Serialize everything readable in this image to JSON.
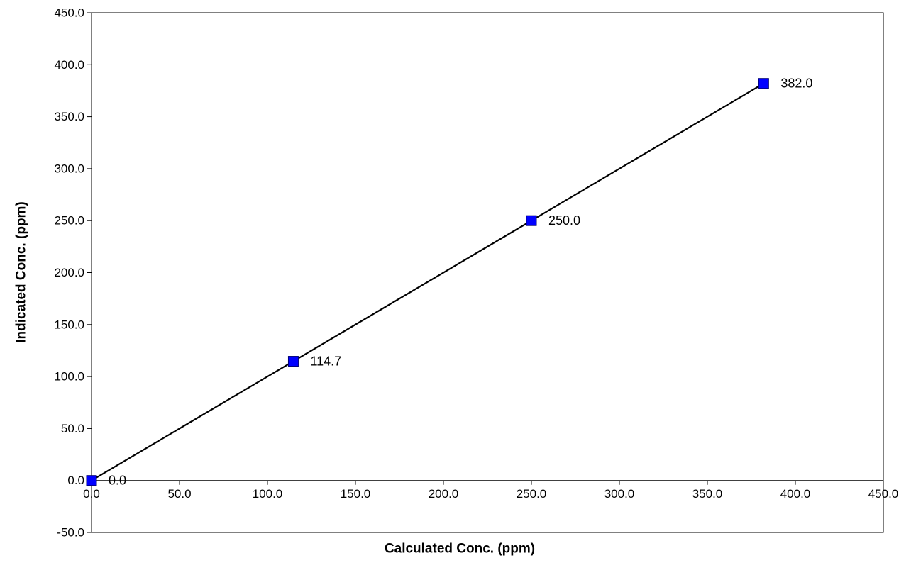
{
  "chart_data": {
    "type": "scatter",
    "xlabel": "Calculated Conc. (ppm)",
    "ylabel": "Indicated Conc. (ppm)",
    "xlim": [
      0,
      450
    ],
    "ylim": [
      -50,
      450
    ],
    "x_ticks": [
      "0.0",
      "50.0",
      "100.0",
      "150.0",
      "200.0",
      "250.0",
      "300.0",
      "350.0",
      "400.0",
      "450.0"
    ],
    "y_ticks": [
      "-50.0",
      "0.0",
      "50.0",
      "100.0",
      "150.0",
      "200.0",
      "250.0",
      "300.0",
      "350.0",
      "400.0",
      "450.0"
    ],
    "grid": false,
    "legend": "none",
    "series": [
      {
        "x": [
          0.0,
          114.7,
          250.0,
          382.0
        ],
        "y": [
          0.0,
          114.7,
          250.0,
          382.0
        ],
        "labels": [
          "0.0",
          "114.7",
          "250.0",
          "382.0"
        ],
        "marker": "square",
        "marker_color": "#0000ff"
      }
    ],
    "trendline": {
      "x": [
        0.0,
        382.0
      ],
      "y": [
        0.0,
        382.0
      ],
      "color": "#000000"
    }
  }
}
